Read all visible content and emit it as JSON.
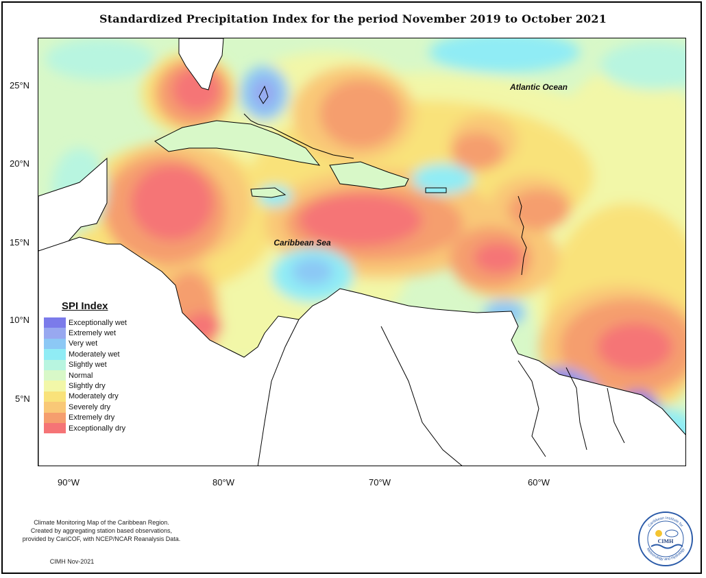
{
  "title": "Standardized Precipitation Index for the period November 2019 to October 2021",
  "map": {
    "labels": {
      "atlantic": "Atlantic Ocean",
      "caribbean": "Caribbean Sea"
    },
    "lat_ticks": [
      "25°N",
      "20°N",
      "15°N",
      "10°N",
      "5°N"
    ],
    "lon_ticks": [
      "90°W",
      "80°W",
      "70°W",
      "60°W"
    ]
  },
  "legend": {
    "title": "SPI Index",
    "items": [
      {
        "label": "Exceptionally wet",
        "color": "#7b7bea"
      },
      {
        "label": "Extremely wet",
        "color": "#98a8f0"
      },
      {
        "label": "Very wet",
        "color": "#8cc8f5"
      },
      {
        "label": "Moderately wet",
        "color": "#90ecf5"
      },
      {
        "label": "Slightly wet",
        "color": "#b8f5e0"
      },
      {
        "label": "Normal",
        "color": "#d8f8c8"
      },
      {
        "label": "Slightly dry",
        "color": "#f2f7a8"
      },
      {
        "label": "Moderately dry",
        "color": "#f9e27a"
      },
      {
        "label": "Severely dry",
        "color": "#f9c877"
      },
      {
        "label": "Extremely dry",
        "color": "#f59e6e"
      },
      {
        "label": "Exceptionally dry",
        "color": "#f57476"
      }
    ]
  },
  "credit": {
    "line1": "Climate Monitoring Map of the Caribbean Region.",
    "line2": "Created by aggregating station based observations,",
    "line3": "provided by CariCOF, with NCEP/NCAR Reanalysis Data.",
    "stamp": "CIMH Nov-2021"
  },
  "logo": {
    "ring_top": "Caribbean Institute for",
    "ring_bottom": "Meteorology and Hydrology",
    "acronym": "CIMH"
  }
}
